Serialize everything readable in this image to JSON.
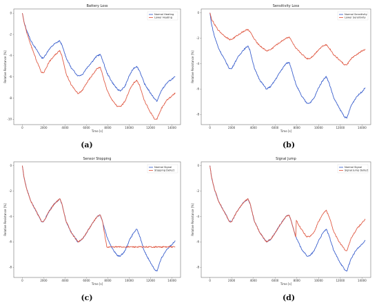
{
  "chart_data": [
    {
      "type": "line",
      "title": "Battery Loss",
      "caption": "(a)",
      "xlabel": "Time [s]",
      "ylabel": "Relative Resistance [%]",
      "xlim": [
        -800,
        14800
      ],
      "ylim": [
        -10.5,
        0.4
      ],
      "xticks": [
        0,
        2000,
        4000,
        6000,
        8000,
        10000,
        12000,
        14000
      ],
      "xtick_labels": [
        "0",
        "2000",
        "4000",
        "6000",
        "8000",
        "10000",
        "12000",
        "14000"
      ],
      "yticks": [
        0,
        -2,
        -4,
        -6,
        -8,
        -10
      ],
      "ytick_labels": [
        "0",
        "-2",
        "-4",
        "-6",
        "-8",
        "-10"
      ],
      "legend": "top-right",
      "series": [
        {
          "name": "Normal Heating",
          "color": "#3a5fcd",
          "x": [
            0,
            150,
            400,
            800,
            1300,
            1800,
            2000,
            2500,
            3000,
            3500,
            3700,
            4100,
            4600,
            5200,
            5600,
            6000,
            6500,
            7000,
            7300,
            7500,
            7900,
            8400,
            8900,
            9200,
            9600,
            10000,
            10400,
            10700,
            11000,
            11400,
            11900,
            12400,
            12600,
            13000,
            13500,
            14000,
            14300
          ],
          "y": [
            0,
            -0.8,
            -1.6,
            -2.6,
            -3.4,
            -4.2,
            -4.2,
            -3.4,
            -2.9,
            -2.6,
            -3.0,
            -4.2,
            -5.2,
            -5.9,
            -5.8,
            -5.2,
            -4.6,
            -4.0,
            -3.9,
            -4.4,
            -5.6,
            -6.5,
            -7.2,
            -7.3,
            -6.9,
            -5.9,
            -5.2,
            -5.0,
            -5.5,
            -6.6,
            -7.4,
            -8.1,
            -8.3,
            -7.3,
            -6.6,
            -6.2,
            -6.0
          ]
        },
        {
          "name": "Lower Heating",
          "color": "#e05a44",
          "x": [
            0,
            150,
            400,
            800,
            1300,
            1800,
            2000,
            2500,
            3000,
            3500,
            3700,
            4100,
            4600,
            5200,
            5600,
            6000,
            6500,
            7000,
            7300,
            7500,
            7900,
            8400,
            8900,
            9200,
            9600,
            10000,
            10400,
            10700,
            11000,
            11400,
            11900,
            12400,
            12600,
            13000,
            13500,
            14000,
            14300
          ],
          "y": [
            0,
            -0.8,
            -1.8,
            -3.0,
            -4.4,
            -5.6,
            -5.6,
            -4.6,
            -4.0,
            -3.5,
            -4.0,
            -5.7,
            -6.8,
            -7.6,
            -7.3,
            -6.6,
            -5.9,
            -5.2,
            -5.1,
            -5.8,
            -7.2,
            -8.2,
            -8.8,
            -8.8,
            -8.3,
            -7.3,
            -6.6,
            -6.3,
            -6.9,
            -8.2,
            -9.2,
            -10.0,
            -10.0,
            -9.0,
            -8.2,
            -7.8,
            -7.5
          ]
        }
      ]
    },
    {
      "type": "line",
      "title": "Sensitivity Loss",
      "caption": "(b)",
      "xlabel": "Time [s]",
      "ylabel": "Relative Resistance [%]",
      "xlim": [
        -800,
        14800
      ],
      "ylim": [
        -8.8,
        0.3
      ],
      "xticks": [
        0,
        2000,
        4000,
        6000,
        8000,
        10000,
        12000,
        14000
      ],
      "xtick_labels": [
        "0",
        "2000",
        "4000",
        "6000",
        "8000",
        "10000",
        "12000",
        "14000"
      ],
      "yticks": [
        0,
        -2,
        -4,
        -6,
        -8
      ],
      "ytick_labels": [
        "0",
        "-2",
        "-4",
        "-6",
        "-8"
      ],
      "legend": "top-right",
      "series": [
        {
          "name": "Normal Sensitivity",
          "color": "#3a5fcd",
          "x": [
            0,
            150,
            400,
            800,
            1300,
            1800,
            2000,
            2500,
            3000,
            3500,
            3700,
            4100,
            4600,
            5200,
            5600,
            6000,
            6500,
            7000,
            7300,
            7500,
            7900,
            8400,
            8900,
            9200,
            9600,
            10000,
            10400,
            10700,
            11000,
            11400,
            11900,
            12400,
            12600,
            13000,
            13500,
            14000,
            14300
          ],
          "y": [
            0,
            -0.9,
            -1.8,
            -2.8,
            -3.6,
            -4.4,
            -4.4,
            -3.6,
            -3.0,
            -2.6,
            -3.0,
            -4.4,
            -5.3,
            -6.0,
            -5.8,
            -5.3,
            -4.6,
            -4.0,
            -3.9,
            -4.4,
            -5.6,
            -6.5,
            -7.1,
            -7.1,
            -6.7,
            -5.9,
            -5.3,
            -5.0,
            -5.6,
            -6.7,
            -7.5,
            -8.2,
            -8.3,
            -7.3,
            -6.6,
            -6.2,
            -5.9
          ]
        },
        {
          "name": "Lower Sensitivity",
          "color": "#e05a44",
          "x": [
            0,
            150,
            400,
            800,
            1300,
            1800,
            2000,
            2500,
            3000,
            3500,
            3700,
            4100,
            4600,
            5200,
            5600,
            6000,
            6500,
            7000,
            7300,
            7500,
            7900,
            8400,
            8900,
            9200,
            9600,
            10000,
            10400,
            10700,
            11000,
            11400,
            11900,
            12400,
            12600,
            13000,
            13500,
            14000,
            14300
          ],
          "y": [
            0,
            -0.5,
            -0.9,
            -1.4,
            -1.8,
            -2.1,
            -2.1,
            -1.8,
            -1.5,
            -1.3,
            -1.5,
            -2.1,
            -2.6,
            -3.0,
            -2.9,
            -2.6,
            -2.3,
            -2.0,
            -1.9,
            -2.2,
            -2.8,
            -3.2,
            -3.6,
            -3.6,
            -3.3,
            -2.9,
            -2.6,
            -2.5,
            -2.8,
            -3.3,
            -3.7,
            -4.1,
            -4.1,
            -3.6,
            -3.3,
            -3.0,
            -2.9
          ]
        }
      ]
    },
    {
      "type": "line",
      "title": "Sensor Stopping",
      "caption": "(c)",
      "xlabel": "Time [s]",
      "ylabel": "Relative Resistance [%]",
      "xlim": [
        -800,
        14800
      ],
      "ylim": [
        -8.8,
        0.3
      ],
      "xticks": [
        0,
        2000,
        4000,
        6000,
        8000,
        10000,
        12000,
        14000
      ],
      "xtick_labels": [
        "0",
        "2000",
        "4000",
        "6000",
        "8000",
        "10000",
        "12000",
        "14000"
      ],
      "yticks": [
        0,
        -2,
        -4,
        -6,
        -8
      ],
      "ytick_labels": [
        "0",
        "-2",
        "-4",
        "-6",
        "-8"
      ],
      "legend": "top-right",
      "series": [
        {
          "name": "Normal Signal",
          "color": "#3a5fcd",
          "x": [
            0,
            150,
            400,
            800,
            1300,
            1800,
            2000,
            2500,
            3000,
            3500,
            3700,
            4100,
            4600,
            5200,
            5600,
            6000,
            6500,
            7000,
            7300,
            7500,
            7900,
            8400,
            8900,
            9200,
            9600,
            10000,
            10400,
            10700,
            11000,
            11400,
            11900,
            12400,
            12600,
            13000,
            13500,
            14000,
            14300
          ],
          "y": [
            0,
            -0.9,
            -1.8,
            -2.8,
            -3.6,
            -4.4,
            -4.4,
            -3.6,
            -3.0,
            -2.6,
            -3.0,
            -4.4,
            -5.3,
            -6.0,
            -5.8,
            -5.3,
            -4.6,
            -4.0,
            -3.9,
            -4.4,
            -5.6,
            -6.5,
            -7.1,
            -7.1,
            -6.7,
            -5.9,
            -5.3,
            -5.0,
            -5.6,
            -6.7,
            -7.5,
            -8.2,
            -8.3,
            -7.3,
            -6.6,
            -6.2,
            -5.9
          ]
        },
        {
          "name": "Stopping Defect",
          "color": "#e05a44",
          "x": [
            0,
            150,
            400,
            800,
            1300,
            1800,
            2000,
            2500,
            3000,
            3500,
            3700,
            4100,
            4600,
            5200,
            5600,
            6000,
            6500,
            7000,
            7300,
            7500,
            7900,
            14300
          ],
          "y": [
            0,
            -0.9,
            -1.8,
            -2.8,
            -3.6,
            -4.4,
            -4.4,
            -3.6,
            -3.0,
            -2.6,
            -3.0,
            -4.4,
            -5.3,
            -6.0,
            -5.8,
            -5.3,
            -4.6,
            -4.0,
            -3.9,
            -4.4,
            -6.4,
            -6.4
          ]
        }
      ]
    },
    {
      "type": "line",
      "title": "Signal Jump",
      "caption": "(d)",
      "xlabel": "Time [s]",
      "ylabel": "Relative Resistance [%]",
      "xlim": [
        -800,
        14800
      ],
      "ylim": [
        -8.8,
        0.3
      ],
      "xticks": [
        0,
        2000,
        4000,
        6000,
        8000,
        10000,
        12000,
        14000
      ],
      "xtick_labels": [
        "0",
        "2000",
        "4000",
        "6000",
        "8000",
        "10000",
        "12000",
        "14000"
      ],
      "yticks": [
        0,
        -2,
        -4,
        -6,
        -8
      ],
      "ytick_labels": [
        "0",
        "-2",
        "-4",
        "-6",
        "-8"
      ],
      "legend": "top-right",
      "series": [
        {
          "name": "Normal Signal",
          "color": "#3a5fcd",
          "x": [
            0,
            150,
            400,
            800,
            1300,
            1800,
            2000,
            2500,
            3000,
            3500,
            3700,
            4100,
            4600,
            5200,
            5600,
            6000,
            6500,
            7000,
            7300,
            7500,
            7900,
            8400,
            8900,
            9200,
            9600,
            10000,
            10400,
            10700,
            11000,
            11400,
            11900,
            12400,
            12600,
            13000,
            13500,
            14000,
            14300
          ],
          "y": [
            0,
            -0.9,
            -1.8,
            -2.8,
            -3.6,
            -4.4,
            -4.4,
            -3.6,
            -3.0,
            -2.6,
            -3.0,
            -4.4,
            -5.3,
            -6.0,
            -5.8,
            -5.3,
            -4.6,
            -4.0,
            -3.9,
            -4.4,
            -5.6,
            -6.5,
            -7.1,
            -7.1,
            -6.7,
            -5.9,
            -5.3,
            -5.0,
            -5.6,
            -6.7,
            -7.5,
            -8.2,
            -8.3,
            -7.3,
            -6.6,
            -6.2,
            -5.9
          ]
        },
        {
          "name": "Signal Jump Defect",
          "color": "#e05a44",
          "x": [
            0,
            150,
            400,
            800,
            1300,
            1800,
            2000,
            2500,
            3000,
            3500,
            3700,
            4100,
            4600,
            5200,
            5600,
            6000,
            6500,
            7000,
            7300,
            7500,
            7900,
            7950,
            8400,
            8900,
            9200,
            9600,
            10000,
            10400,
            10700,
            11000,
            11400,
            11900,
            12400,
            12600,
            13000,
            13500,
            14000,
            14300
          ],
          "y": [
            0,
            -0.9,
            -1.8,
            -2.8,
            -3.6,
            -4.4,
            -4.4,
            -3.6,
            -3.0,
            -2.6,
            -3.0,
            -4.4,
            -5.3,
            -6.0,
            -5.8,
            -5.3,
            -4.6,
            -4.0,
            -3.9,
            -4.4,
            -5.6,
            -4.3,
            -5.0,
            -5.6,
            -5.6,
            -5.2,
            -4.4,
            -3.8,
            -3.5,
            -4.1,
            -5.2,
            -6.0,
            -6.6,
            -6.7,
            -5.7,
            -5.0,
            -4.5,
            -4.2
          ]
        }
      ]
    }
  ]
}
